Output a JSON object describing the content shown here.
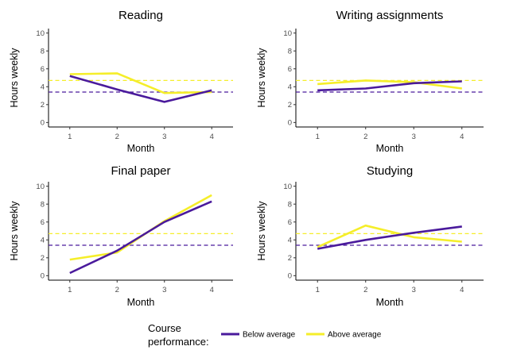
{
  "chart_data": [
    {
      "type": "line",
      "title": "Reading",
      "xlabel": "Month",
      "ylabel": "Hours weekly",
      "x": [
        1,
        2,
        3,
        4
      ],
      "xlim": [
        0.55,
        4.45
      ],
      "ylim": [
        -0.5,
        10.5
      ],
      "yticks": [
        0,
        2,
        4,
        6,
        8,
        10
      ],
      "series": [
        {
          "name": "Below average",
          "values": [
            5.2,
            3.7,
            2.3,
            3.6
          ]
        },
        {
          "name": "Above average",
          "values": [
            5.4,
            5.5,
            3.3,
            3.4
          ]
        }
      ],
      "reference_lines": [
        {
          "series": "Below average",
          "y": 3.4
        },
        {
          "series": "Above average",
          "y": 4.7
        }
      ]
    },
    {
      "type": "line",
      "title": "Writing assignments",
      "xlabel": "Month",
      "ylabel": "Hours weekly",
      "x": [
        1,
        2,
        3,
        4
      ],
      "xlim": [
        0.55,
        4.45
      ],
      "ylim": [
        -0.5,
        10.5
      ],
      "yticks": [
        0,
        2,
        4,
        6,
        8,
        10
      ],
      "series": [
        {
          "name": "Below average",
          "values": [
            3.6,
            3.8,
            4.4,
            4.6
          ]
        },
        {
          "name": "Above average",
          "values": [
            4.3,
            4.7,
            4.5,
            3.8
          ]
        }
      ],
      "reference_lines": [
        {
          "series": "Below average",
          "y": 3.4
        },
        {
          "series": "Above average",
          "y": 4.7
        }
      ]
    },
    {
      "type": "line",
      "title": "Final paper",
      "xlabel": "Month",
      "ylabel": "Hours weekly",
      "x": [
        1,
        2,
        3,
        4
      ],
      "xlim": [
        0.55,
        4.45
      ],
      "ylim": [
        -0.5,
        10.5
      ],
      "yticks": [
        0,
        2,
        4,
        6,
        8,
        10
      ],
      "series": [
        {
          "name": "Below average",
          "values": [
            0.3,
            2.8,
            6.0,
            8.3
          ]
        },
        {
          "name": "Above average",
          "values": [
            1.8,
            2.6,
            6.1,
            9.0
          ]
        }
      ],
      "reference_lines": [
        {
          "series": "Below average",
          "y": 3.4
        },
        {
          "series": "Above average",
          "y": 4.7
        }
      ]
    },
    {
      "type": "line",
      "title": "Studying",
      "xlabel": "Month",
      "ylabel": "Hours weekly",
      "x": [
        1,
        2,
        3,
        4
      ],
      "xlim": [
        0.55,
        4.45
      ],
      "ylim": [
        -0.5,
        10.5
      ],
      "yticks": [
        0,
        2,
        4,
        6,
        8,
        10
      ],
      "series": [
        {
          "name": "Below average",
          "values": [
            3.0,
            4.0,
            4.8,
            5.5
          ]
        },
        {
          "name": "Above average",
          "values": [
            3.2,
            5.6,
            4.3,
            3.8
          ]
        }
      ],
      "reference_lines": [
        {
          "series": "Below average",
          "y": 3.4
        },
        {
          "series": "Above average",
          "y": 4.7
        }
      ]
    }
  ],
  "legend": {
    "title_line1": "Course",
    "title_line2": "performance:",
    "placement": "bottom",
    "items": [
      {
        "label": "Below average",
        "color": "#4a1a9c"
      },
      {
        "label": "Above average",
        "color": "#f5ee2a"
      }
    ]
  },
  "colors": {
    "Below average": "#4a1a9c",
    "Above average": "#f5ee2a",
    "axis": "#000000"
  }
}
